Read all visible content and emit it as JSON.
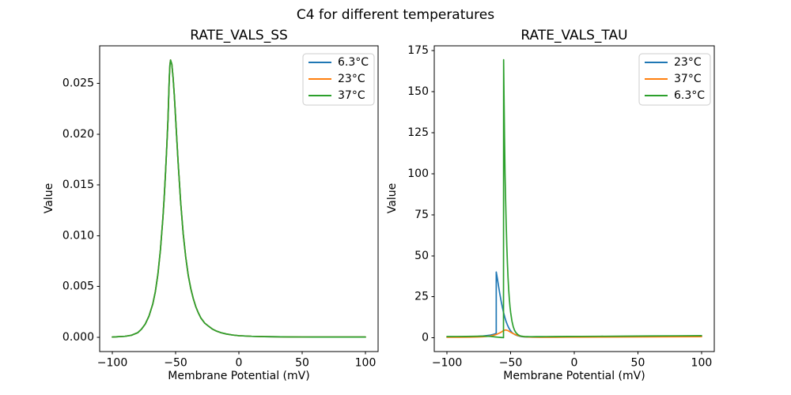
{
  "figure": {
    "suptitle": "C4 for different temperatures",
    "background": "#ffffff",
    "axis_color": "#000000",
    "legend_border_color": "#cccccc",
    "legend_fill": "#ffffff"
  },
  "palette": {
    "blue": "#1f77b4",
    "orange": "#ff7f0e",
    "green": "#2ca02c"
  },
  "chart_data": [
    {
      "type": "line",
      "title": "RATE_VALS_SS",
      "xlabel": "Membrane Potential (mV)",
      "ylabel": "Value",
      "xlim": [
        -110,
        110
      ],
      "ylim": [
        -0.0014,
        0.0287
      ],
      "xticks": [
        -100,
        -50,
        0,
        50,
        100
      ],
      "xtick_labels": [
        "−100",
        "−50",
        "0",
        "50",
        "100"
      ],
      "yticks": [
        0,
        0.005,
        0.01,
        0.015,
        0.02,
        0.025
      ],
      "ytick_labels": [
        "0.000",
        "0.005",
        "0.010",
        "0.015",
        "0.020",
        "0.025"
      ],
      "grid": false,
      "legend_position": "upper right",
      "legend": [
        {
          "label": "6.3°C",
          "color": "#1f77b4"
        },
        {
          "label": "23°C",
          "color": "#ff7f0e"
        },
        {
          "label": "37°C",
          "color": "#2ca02c"
        }
      ],
      "note": "All three temperature curves coincide exactly; green (drawn last) is visible. Peak 0.0273 at -54 mV.",
      "series": [
        {
          "name": "6.3°C",
          "color": "#1f77b4",
          "x": [
            -100,
            -90,
            -85,
            -80,
            -77,
            -74,
            -71,
            -68,
            -66,
            -64,
            -62,
            -60,
            -59,
            -58,
            -57,
            -56,
            -55,
            -54.5,
            -54,
            -53,
            -52,
            -51,
            -50,
            -48,
            -46,
            -44,
            -42,
            -40,
            -38,
            -36,
            -34,
            -32,
            -30,
            -27,
            -24,
            -21,
            -18,
            -14,
            -10,
            -5,
            0,
            10,
            20,
            40,
            60,
            80,
            100
          ],
          "y": [
            3e-05,
            0.0001,
            0.0002,
            0.00045,
            0.0008,
            0.0013,
            0.0021,
            0.0033,
            0.0045,
            0.0062,
            0.0086,
            0.0118,
            0.0138,
            0.0161,
            0.0187,
            0.0215,
            0.0255,
            0.0268,
            0.0273,
            0.0269,
            0.0256,
            0.0238,
            0.0216,
            0.0172,
            0.0133,
            0.0102,
            0.0079,
            0.0061,
            0.0048,
            0.0038,
            0.003,
            0.0024,
            0.0019,
            0.0014,
            0.0011,
            0.00082,
            0.00063,
            0.00045,
            0.00033,
            0.00023,
            0.00016,
            0.0001,
            7e-05,
            4e-05,
            3e-05,
            3e-05,
            3e-05
          ]
        },
        {
          "name": "23°C",
          "color": "#ff7f0e",
          "same_xy_as": 0
        },
        {
          "name": "37°C",
          "color": "#2ca02c",
          "same_xy_as": 0
        }
      ]
    },
    {
      "type": "line",
      "title": "RATE_VALS_TAU",
      "xlabel": "Membrane Potential (mV)",
      "ylabel": "Value",
      "xlim": [
        -110,
        110
      ],
      "ylim": [
        -8.4,
        178
      ],
      "xticks": [
        -100,
        -50,
        0,
        50,
        100
      ],
      "xtick_labels": [
        "−100",
        "−50",
        "0",
        "50",
        "100"
      ],
      "yticks": [
        0,
        25,
        50,
        75,
        100,
        125,
        150,
        175
      ],
      "ytick_labels": [
        "0",
        "25",
        "50",
        "75",
        "100",
        "125",
        "150",
        "175"
      ],
      "grid": false,
      "legend_position": "upper right",
      "legend": [
        {
          "label": "23°C",
          "color": "#1f77b4"
        },
        {
          "label": "37°C",
          "color": "#ff7f0e"
        },
        {
          "label": "6.3°C",
          "color": "#2ca02c"
        }
      ],
      "note": "Sharp spike peaks: blue 23°C ~40 at -61 mV, orange 37°C ~4.8 at -54 mV, green 6.3°C ~169.5 at -55.5 mV.",
      "series": [
        {
          "name": "23°C",
          "color": "#1f77b4",
          "x": [
            -100,
            -90,
            -82,
            -76,
            -72,
            -69,
            -66,
            -64,
            -63,
            -62,
            -61.5,
            -61.3,
            -61.3,
            -60.5,
            -59.5,
            -58.5,
            -57.5,
            -56.5,
            -55.5,
            -54.5,
            -53.5,
            -52.5,
            -51.5,
            -50.5,
            -49.5,
            -48.5,
            -47,
            -45.5,
            -44,
            -42.5,
            -41,
            -39.5,
            -38,
            -36,
            -33,
            -30,
            -25,
            -20,
            -10,
            0,
            20,
            40,
            60,
            80,
            100
          ],
          "y": [
            0.55,
            0.6,
            0.7,
            0.85,
            1.05,
            1.3,
            1.6,
            1.95,
            2.2,
            2.5,
            2.7,
            2.9,
            40.1,
            36.5,
            31.5,
            26.8,
            22.5,
            18.6,
            15.2,
            12.3,
            9.8,
            7.8,
            6.1,
            4.8,
            3.7,
            2.9,
            2.1,
            1.55,
            1.15,
            0.88,
            0.7,
            0.58,
            0.5,
            0.44,
            0.4,
            0.38,
            0.38,
            0.4,
            0.45,
            0.5,
            0.6,
            0.7,
            0.8,
            0.9,
            1.0
          ]
        },
        {
          "name": "37°C",
          "color": "#ff7f0e",
          "x": [
            -100,
            -90,
            -82,
            -76,
            -72,
            -69,
            -66,
            -63,
            -61,
            -59,
            -57.5,
            -56.5,
            -55.5,
            -54.5,
            -54,
            -53,
            -52,
            -51,
            -50,
            -48.5,
            -47,
            -45.5,
            -44,
            -42,
            -40,
            -38,
            -35,
            -31,
            -27,
            -22,
            -15,
            -5,
            5,
            20,
            40,
            60,
            80,
            100
          ],
          "y": [
            0.3,
            0.33,
            0.38,
            0.48,
            0.62,
            0.8,
            1.1,
            1.6,
            2.1,
            2.8,
            3.4,
            3.9,
            4.4,
            4.7,
            4.75,
            4.6,
            4.3,
            3.85,
            3.4,
            2.75,
            2.2,
            1.7,
            1.3,
            0.95,
            0.7,
            0.55,
            0.44,
            0.37,
            0.33,
            0.31,
            0.32,
            0.35,
            0.38,
            0.43,
            0.5,
            0.55,
            0.6,
            0.65
          ]
        },
        {
          "name": "6.3°C",
          "color": "#2ca02c",
          "x": [
            -100,
            -92,
            -85,
            -80,
            -76,
            -73,
            -70,
            -68,
            -66,
            -64,
            -62,
            -60,
            -58,
            -57,
            -56,
            -55.6,
            -55.5,
            -55.2,
            -54.8,
            -54.4,
            -54,
            -53.5,
            -53,
            -52.5,
            -52,
            -51.5,
            -51,
            -50.5,
            -50,
            -49,
            -48,
            -47,
            -46,
            -45,
            -44,
            -43,
            -42,
            -41,
            -40,
            -38.5,
            -37,
            -35,
            -33,
            -30,
            -26,
            -22,
            -15,
            -5,
            5,
            20,
            40,
            60,
            80,
            100
          ],
          "y": [
            0.75,
            0.78,
            0.82,
            0.88,
            0.95,
            1.0,
            1.0,
            0.95,
            0.85,
            0.7,
            0.52,
            0.36,
            0.22,
            0.16,
            0.11,
            0.08,
            169.5,
            148,
            122,
            100,
            86,
            70,
            56,
            45,
            36,
            29,
            23.5,
            19,
            15.5,
            10.3,
            6.9,
            4.7,
            3.3,
            2.4,
            1.75,
            1.35,
            1.1,
            0.92,
            0.8,
            0.72,
            0.68,
            0.66,
            0.66,
            0.68,
            0.7,
            0.72,
            0.76,
            0.8,
            0.85,
            0.9,
            1.0,
            1.1,
            1.2,
            1.3
          ]
        }
      ]
    }
  ]
}
